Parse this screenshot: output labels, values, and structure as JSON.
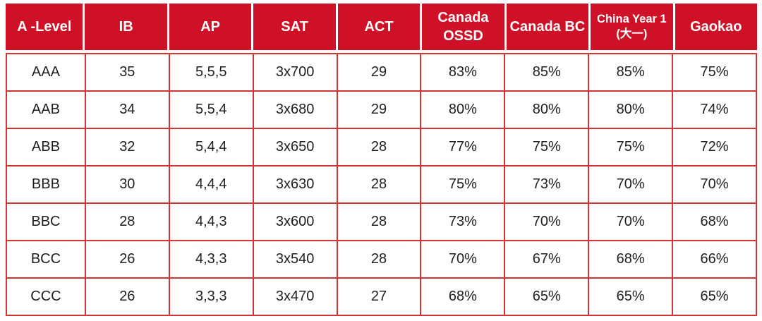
{
  "chart_data": {
    "type": "table",
    "title": "",
    "columns": [
      "A -Level",
      "IB",
      "AP",
      "SAT",
      "ACT",
      "Canada OSSD",
      "Canada BC",
      "China Year 1 (大一)",
      "Gaokao"
    ],
    "rows": [
      [
        "AAA",
        "35",
        "5,5,5",
        "3x700",
        "29",
        "83%",
        "85%",
        "85%",
        "75%"
      ],
      [
        "AAB",
        "34",
        "5,5,4",
        "3x680",
        "29",
        "80%",
        "80%",
        "80%",
        "74%"
      ],
      [
        "ABB",
        "32",
        "5,4,4",
        "3x650",
        "28",
        "77%",
        "75%",
        "75%",
        "72%"
      ],
      [
        "BBB",
        "30",
        "4,4,4",
        "3x630",
        "28",
        "75%",
        "73%",
        "70%",
        "70%"
      ],
      [
        "BBC",
        "28",
        "4,4,3",
        "3x600",
        "28",
        "73%",
        "70%",
        "70%",
        "68%"
      ],
      [
        "BCC",
        "26",
        "4,3,3",
        "3x540",
        "28",
        "70%",
        "67%",
        "68%",
        "66%"
      ],
      [
        "CCC",
        "26",
        "3,3,3",
        "3x470",
        "27",
        "68%",
        "65%",
        "65%",
        "65%"
      ]
    ]
  },
  "header_display": [
    {
      "lines": [
        "A -Level"
      ]
    },
    {
      "lines": [
        "IB"
      ]
    },
    {
      "lines": [
        "AP"
      ]
    },
    {
      "lines": [
        "SAT"
      ]
    },
    {
      "lines": [
        "ACT"
      ]
    },
    {
      "lines": [
        "Canada",
        "OSSD"
      ]
    },
    {
      "lines": [
        "Canada BC"
      ]
    },
    {
      "lines": [
        "China Year 1",
        "(大一)"
      ]
    },
    {
      "lines": [
        "Gaokao"
      ]
    }
  ],
  "colors": {
    "header_bg": "#ce1126",
    "grid_line": "#d23434",
    "cell_bg": "#ffffff",
    "header_text": "#ffffff",
    "body_text": "#1f1f1f"
  }
}
